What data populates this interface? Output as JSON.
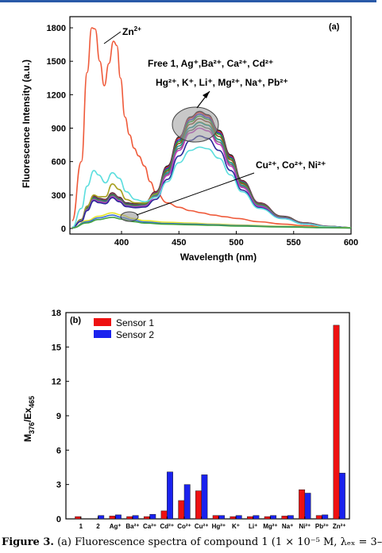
{
  "chart_data": [
    {
      "type": "line",
      "panel_label": "(a)",
      "xlabel": "Wavelength (nm)",
      "ylabel": "Fluorescence Intensity (a.u.)",
      "xlim": [
        355,
        600
      ],
      "ylim": [
        -50,
        1900
      ],
      "x_ticks": [
        400,
        450,
        500,
        550,
        600
      ],
      "y_ticks": [
        0,
        300,
        600,
        900,
        1200,
        1500,
        1800
      ],
      "grid": false,
      "annotations": [
        {
          "id": "zn",
          "text": "Zn",
          "sup": "2+"
        },
        {
          "id": "free",
          "text": "Free 1, Ag⁺,Ba²⁺, Ca²⁺, Cd²⁺"
        },
        {
          "id": "hg",
          "text": "Hg²⁺, K⁺, Li⁺, Mg²⁺, Na⁺, Pb²⁺"
        },
        {
          "id": "cu",
          "text": "Cu²⁺, Co²⁺, Ni²⁺"
        }
      ],
      "series": [
        {
          "color": "#ef5a3a",
          "x": [
            357,
            365,
            370,
            374,
            377,
            381,
            385,
            389,
            393,
            396,
            399,
            403,
            407,
            411,
            415,
            420,
            425,
            430,
            440,
            450,
            460,
            470,
            480,
            490,
            500,
            520,
            540,
            560,
            580,
            600
          ],
          "y": [
            70,
            600,
            1400,
            1800,
            1790,
            1500,
            1280,
            1480,
            1680,
            1640,
            1350,
            1000,
            840,
            720,
            650,
            560,
            420,
            320,
            230,
            190,
            160,
            140,
            120,
            105,
            90,
            60,
            40,
            25,
            15,
            8
          ]
        },
        {
          "color": "#1c1c1c",
          "x": [
            357,
            365,
            370,
            376,
            380,
            386,
            392,
            398,
            404,
            412,
            420,
            430,
            440,
            450,
            460,
            468,
            475,
            485,
            495,
            505,
            520,
            540,
            560,
            580,
            600
          ],
          "y": [
            10,
            80,
            200,
            290,
            270,
            260,
            320,
            280,
            230,
            220,
            230,
            330,
            560,
            820,
            1000,
            1050,
            1020,
            880,
            660,
            430,
            230,
            110,
            50,
            20,
            8
          ]
        },
        {
          "color": "#d03030",
          "x": [
            357,
            365,
            370,
            376,
            380,
            386,
            392,
            398,
            404,
            412,
            420,
            430,
            440,
            450,
            460,
            468,
            475,
            485,
            495,
            505,
            520,
            540,
            560,
            580,
            600
          ],
          "y": [
            10,
            78,
            195,
            285,
            265,
            255,
            315,
            275,
            225,
            215,
            225,
            325,
            550,
            810,
            990,
            1040,
            1010,
            870,
            650,
            425,
            228,
            108,
            49,
            19,
            8
          ]
        },
        {
          "color": "#3030c0",
          "x": [
            357,
            365,
            370,
            376,
            380,
            386,
            392,
            398,
            404,
            412,
            420,
            430,
            440,
            450,
            460,
            468,
            475,
            485,
            495,
            505,
            520,
            540,
            560,
            580,
            600
          ],
          "y": [
            10,
            76,
            190,
            280,
            262,
            250,
            310,
            270,
            222,
            212,
            222,
            318,
            540,
            795,
            975,
            1025,
            995,
            858,
            640,
            418,
            224,
            106,
            48,
            19,
            8
          ]
        },
        {
          "color": "#2aa02a",
          "x": [
            357,
            365,
            370,
            376,
            380,
            386,
            392,
            398,
            404,
            412,
            420,
            430,
            440,
            450,
            460,
            468,
            475,
            485,
            495,
            505,
            520,
            540,
            560,
            580,
            600
          ],
          "y": [
            10,
            74,
            185,
            275,
            258,
            246,
            305,
            266,
            218,
            208,
            218,
            312,
            528,
            780,
            958,
            1008,
            980,
            845,
            630,
            412,
            220,
            104,
            47,
            18,
            8
          ]
        },
        {
          "color": "#8a4a28",
          "x": [
            357,
            365,
            370,
            376,
            380,
            386,
            392,
            398,
            404,
            412,
            420,
            430,
            440,
            450,
            460,
            468,
            475,
            485,
            495,
            505,
            520,
            540,
            560,
            580,
            600
          ],
          "y": [
            10,
            72,
            180,
            272,
            255,
            243,
            300,
            262,
            214,
            204,
            214,
            305,
            515,
            762,
            936,
            985,
            958,
            826,
            616,
            403,
            216,
            102,
            46,
            18,
            8
          ]
        },
        {
          "color": "#a8a020",
          "x": [
            357,
            365,
            370,
            376,
            380,
            386,
            392,
            398,
            404,
            412,
            420,
            430,
            440,
            450,
            460,
            468,
            475,
            485,
            495,
            505,
            520,
            540,
            560,
            580,
            600
          ],
          "y": [
            10,
            78,
            200,
            300,
            285,
            285,
            400,
            350,
            260,
            230,
            230,
            310,
            500,
            740,
            905,
            955,
            930,
            800,
            595,
            390,
            210,
            100,
            45,
            17,
            8
          ]
        },
        {
          "color": "#1a9a9a",
          "x": [
            357,
            365,
            370,
            376,
            380,
            386,
            392,
            398,
            404,
            412,
            420,
            430,
            440,
            450,
            460,
            468,
            475,
            485,
            495,
            505,
            520,
            540,
            560,
            580,
            600
          ],
          "y": [
            10,
            70,
            175,
            268,
            250,
            240,
            295,
            258,
            210,
            200,
            210,
            298,
            500,
            740,
            905,
            950,
            925,
            796,
            590,
            388,
            208,
            98,
            44,
            17,
            8
          ]
        },
        {
          "color": "#707070",
          "x": [
            357,
            365,
            370,
            376,
            380,
            386,
            392,
            398,
            404,
            412,
            420,
            430,
            440,
            450,
            460,
            468,
            475,
            485,
            495,
            505,
            520,
            540,
            560,
            580,
            600
          ],
          "y": [
            10,
            68,
            170,
            262,
            245,
            235,
            290,
            252,
            205,
            196,
            205,
            290,
            488,
            718,
            880,
            925,
            900,
            775,
            575,
            378,
            203,
            96,
            43,
            16,
            8
          ]
        },
        {
          "color": "#c040c0",
          "x": [
            357,
            365,
            370,
            376,
            380,
            386,
            392,
            398,
            404,
            412,
            420,
            430,
            440,
            450,
            460,
            468,
            475,
            485,
            495,
            505,
            520,
            540,
            560,
            580,
            600
          ],
          "y": [
            10,
            66,
            165,
            258,
            240,
            230,
            285,
            248,
            202,
            192,
            200,
            282,
            475,
            700,
            858,
            900,
            876,
            755,
            560,
            368,
            198,
            94,
            42,
            16,
            8
          ]
        },
        {
          "color": "#2a2a9a",
          "x": [
            357,
            365,
            370,
            376,
            380,
            386,
            392,
            398,
            404,
            412,
            420,
            430,
            440,
            450,
            460,
            468,
            475,
            485,
            495,
            505,
            520,
            540,
            560,
            580,
            600
          ],
          "y": [
            10,
            64,
            160,
            250,
            232,
            222,
            276,
            240,
            196,
            186,
            192,
            262,
            440,
            650,
            790,
            830,
            808,
            700,
            520,
            345,
            188,
            90,
            40,
            15,
            8
          ]
        },
        {
          "color": "#5cdede",
          "x": [
            357,
            365,
            370,
            376,
            380,
            386,
            392,
            398,
            404,
            412,
            420,
            430,
            440,
            450,
            460,
            468,
            475,
            485,
            495,
            505,
            520,
            540,
            560,
            580,
            600
          ],
          "y": [
            10,
            180,
            380,
            520,
            480,
            410,
            500,
            450,
            330,
            260,
            240,
            280,
            420,
            590,
            700,
            730,
            715,
            630,
            480,
            330,
            180,
            88,
            40,
            15,
            8
          ]
        },
        {
          "color": "#e6e62a",
          "x": [
            357,
            370,
            380,
            392,
            400,
            410,
            420,
            440,
            460,
            480,
            500,
            540,
            580,
            600
          ],
          "y": [
            5,
            70,
            110,
            140,
            120,
            90,
            70,
            55,
            48,
            40,
            32,
            20,
            10,
            6
          ]
        },
        {
          "color": "#3a70d8",
          "x": [
            357,
            370,
            380,
            392,
            400,
            410,
            420,
            440,
            460,
            480,
            500,
            540,
            580,
            600
          ],
          "y": [
            5,
            60,
            95,
            120,
            100,
            75,
            58,
            45,
            40,
            33,
            26,
            16,
            8,
            5
          ]
        },
        {
          "color": "#40a040",
          "x": [
            357,
            370,
            380,
            392,
            400,
            410,
            420,
            440,
            460,
            480,
            500,
            540,
            580,
            600
          ],
          "y": [
            5,
            50,
            80,
            100,
            84,
            62,
            48,
            38,
            33,
            28,
            22,
            13,
            7,
            4
          ]
        }
      ]
    },
    {
      "type": "bar",
      "panel_label": "(b)",
      "ylabel": "M376/Ex465",
      "categories": [
        "1",
        "2",
        "Ag⁺",
        "Ba²⁺",
        "Ca²⁺",
        "Cd²⁺",
        "Co²⁺",
        "Cu²⁺",
        "Hg²⁺",
        "K⁺",
        "Li⁺",
        "Mg²⁺",
        "Na⁺",
        "Ni²⁺",
        "Pb²⁺",
        "Zn²⁺"
      ],
      "series": [
        {
          "name": "Sensor 1",
          "color": "#ee1111",
          "values": [
            0.2,
            0.0,
            0.25,
            0.2,
            0.2,
            0.7,
            1.6,
            2.45,
            0.3,
            0.2,
            0.2,
            0.2,
            0.25,
            2.55,
            0.3,
            16.9
          ]
        },
        {
          "name": "Sensor 2",
          "color": "#1a22ee",
          "values": [
            0.0,
            0.3,
            0.35,
            0.3,
            0.4,
            4.1,
            3.0,
            3.85,
            0.3,
            0.3,
            0.3,
            0.3,
            0.3,
            2.25,
            0.35,
            4.0
          ]
        }
      ],
      "ylim": [
        0,
        18
      ],
      "y_ticks": [
        0,
        3,
        6,
        9,
        12,
        15,
        18
      ],
      "legend_position": "top-left",
      "grid": false
    }
  ],
  "caption": {
    "label": "Figure 3.",
    "text": " (a) Fluorescence spectra of compound 1 (1 × 10⁻⁵ M, λₑₓ = 3–"
  }
}
